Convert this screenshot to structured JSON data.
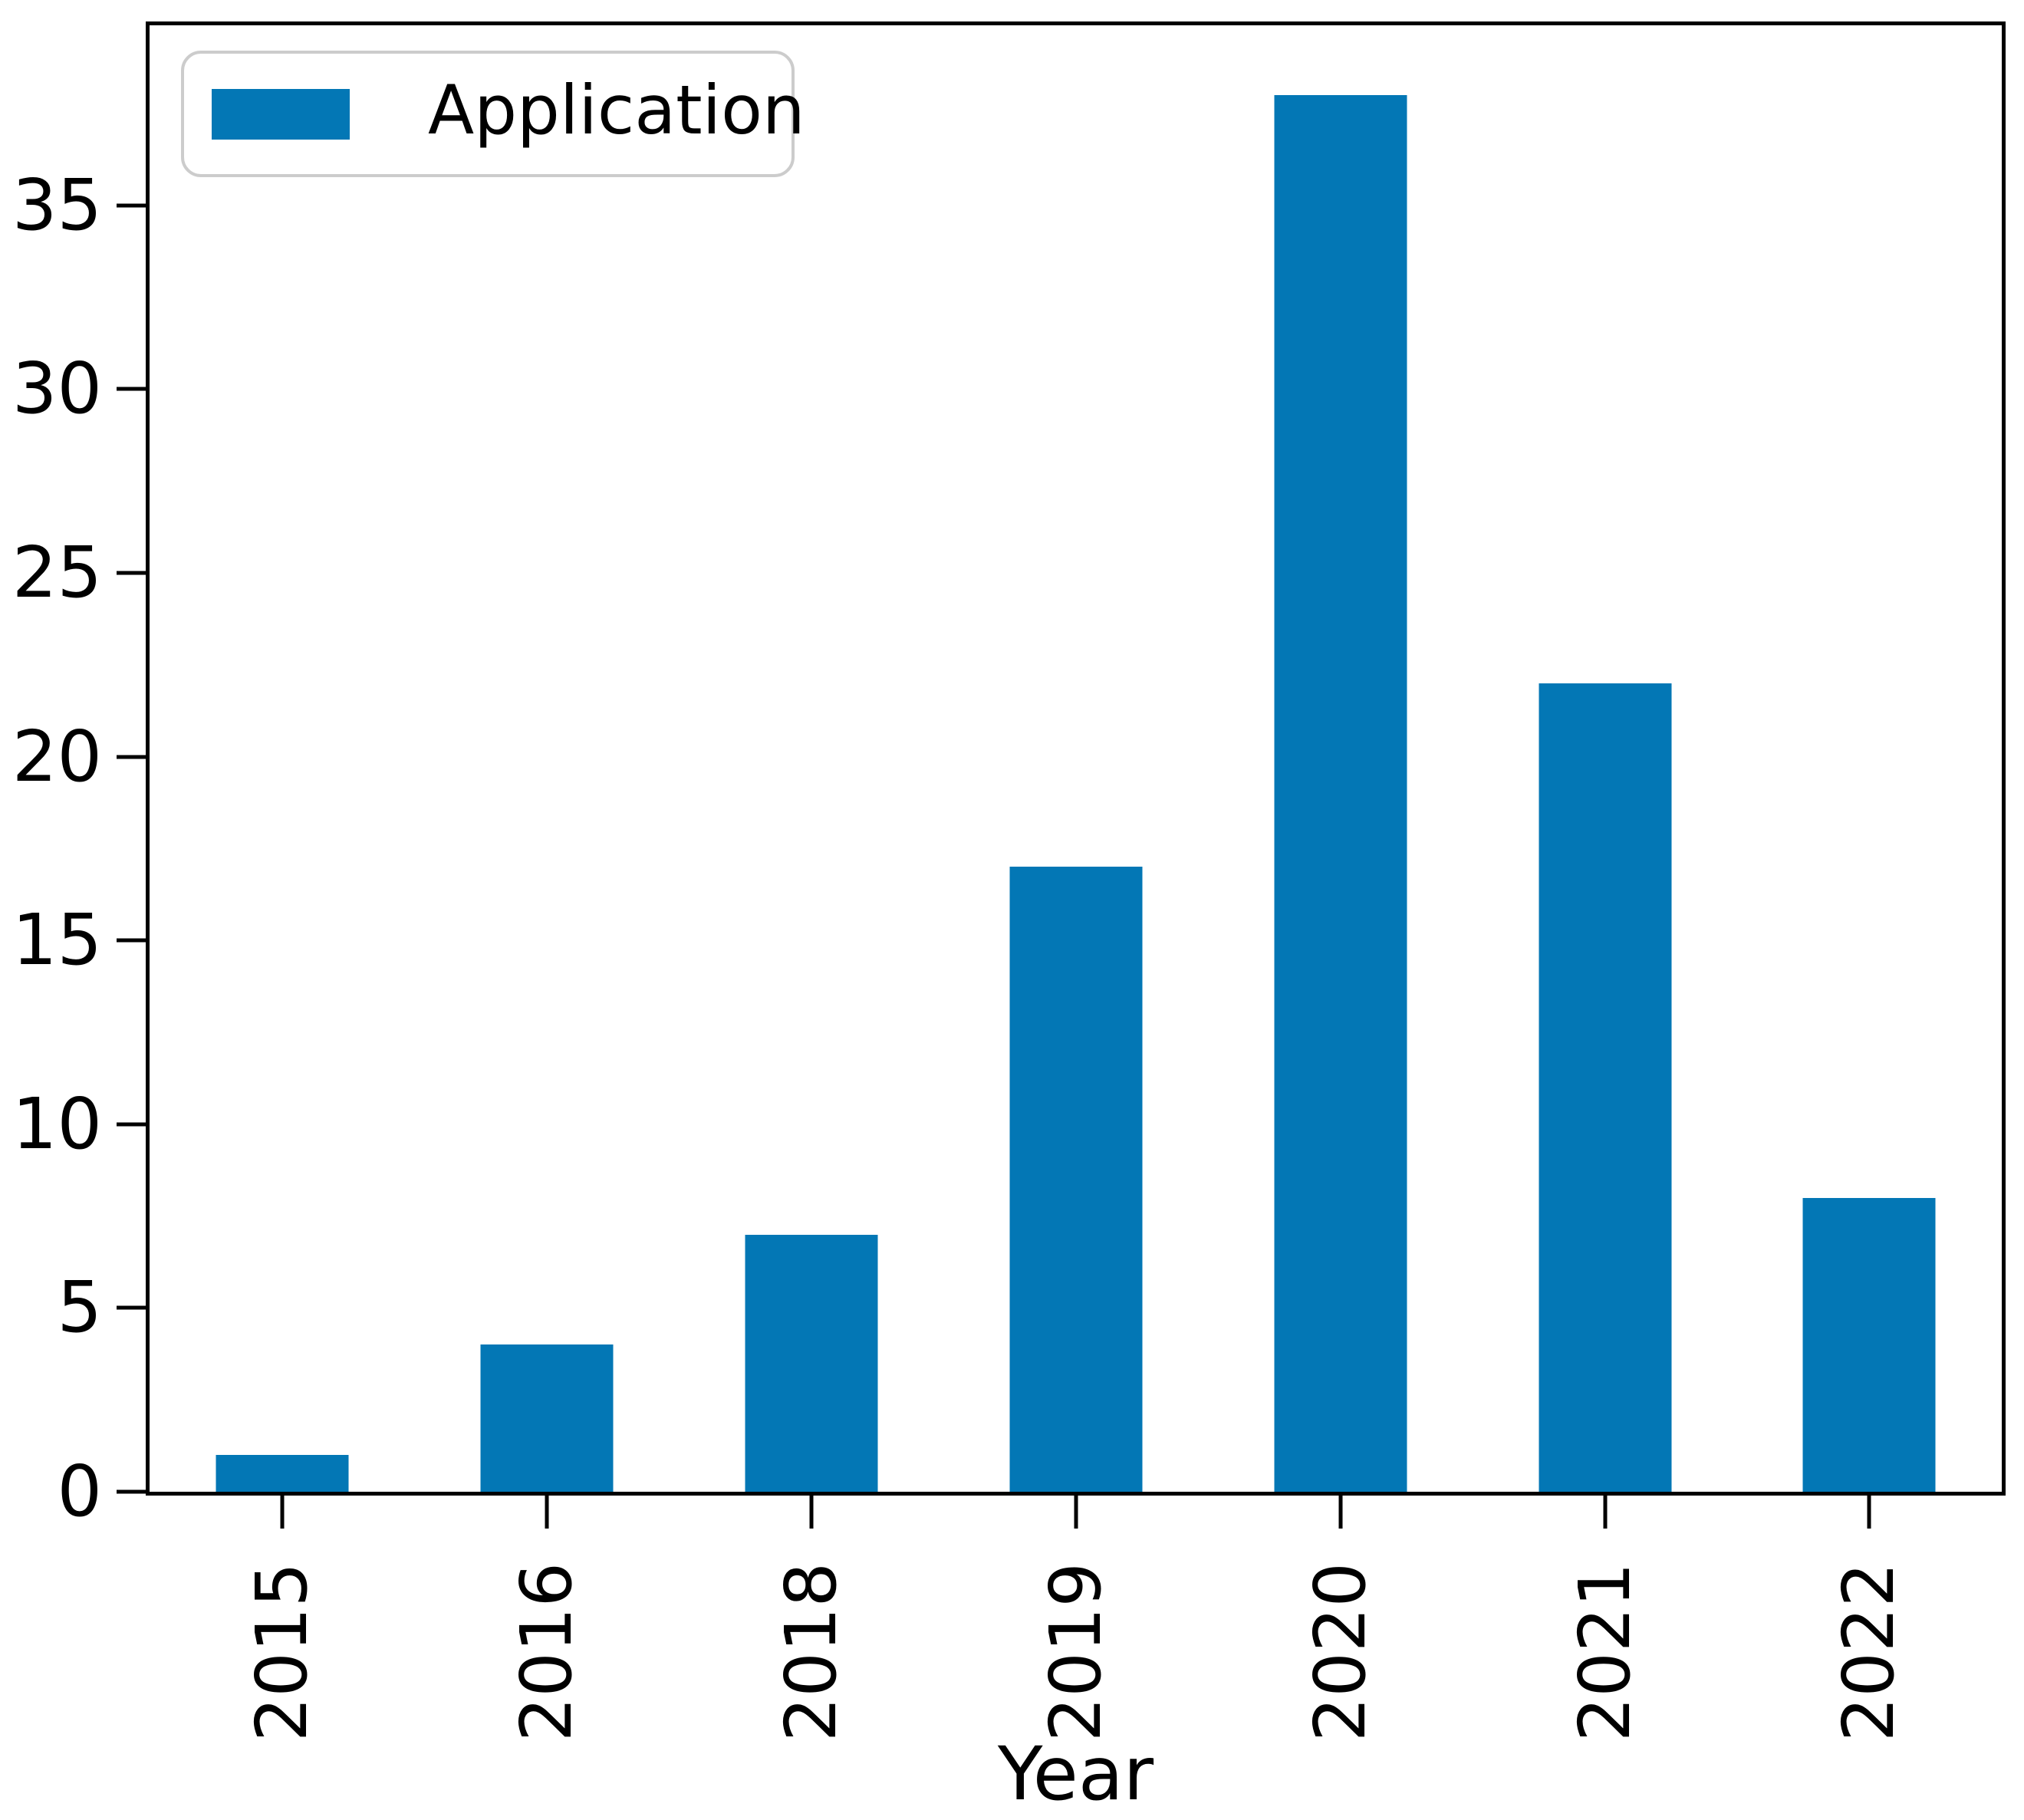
{
  "chart_data": {
    "type": "bar",
    "title": "",
    "categories": [
      "2015",
      "2016",
      "2018",
      "2019",
      "2020",
      "2021",
      "2022"
    ],
    "series": [
      {
        "name": "Application",
        "values": [
          1,
          4,
          7,
          17,
          38,
          22,
          8
        ]
      }
    ],
    "xlabel": "Year",
    "ylabel": "",
    "yticks": [
      0,
      5,
      10,
      15,
      20,
      25,
      30,
      35
    ],
    "ylim": [
      0,
      39.9
    ],
    "grid": false,
    "legend_position": "upper left",
    "bar_color": "#0377b5",
    "axis_color": "#000000",
    "legend_border_color": "#cccccc",
    "background_color": "#ffffff"
  }
}
